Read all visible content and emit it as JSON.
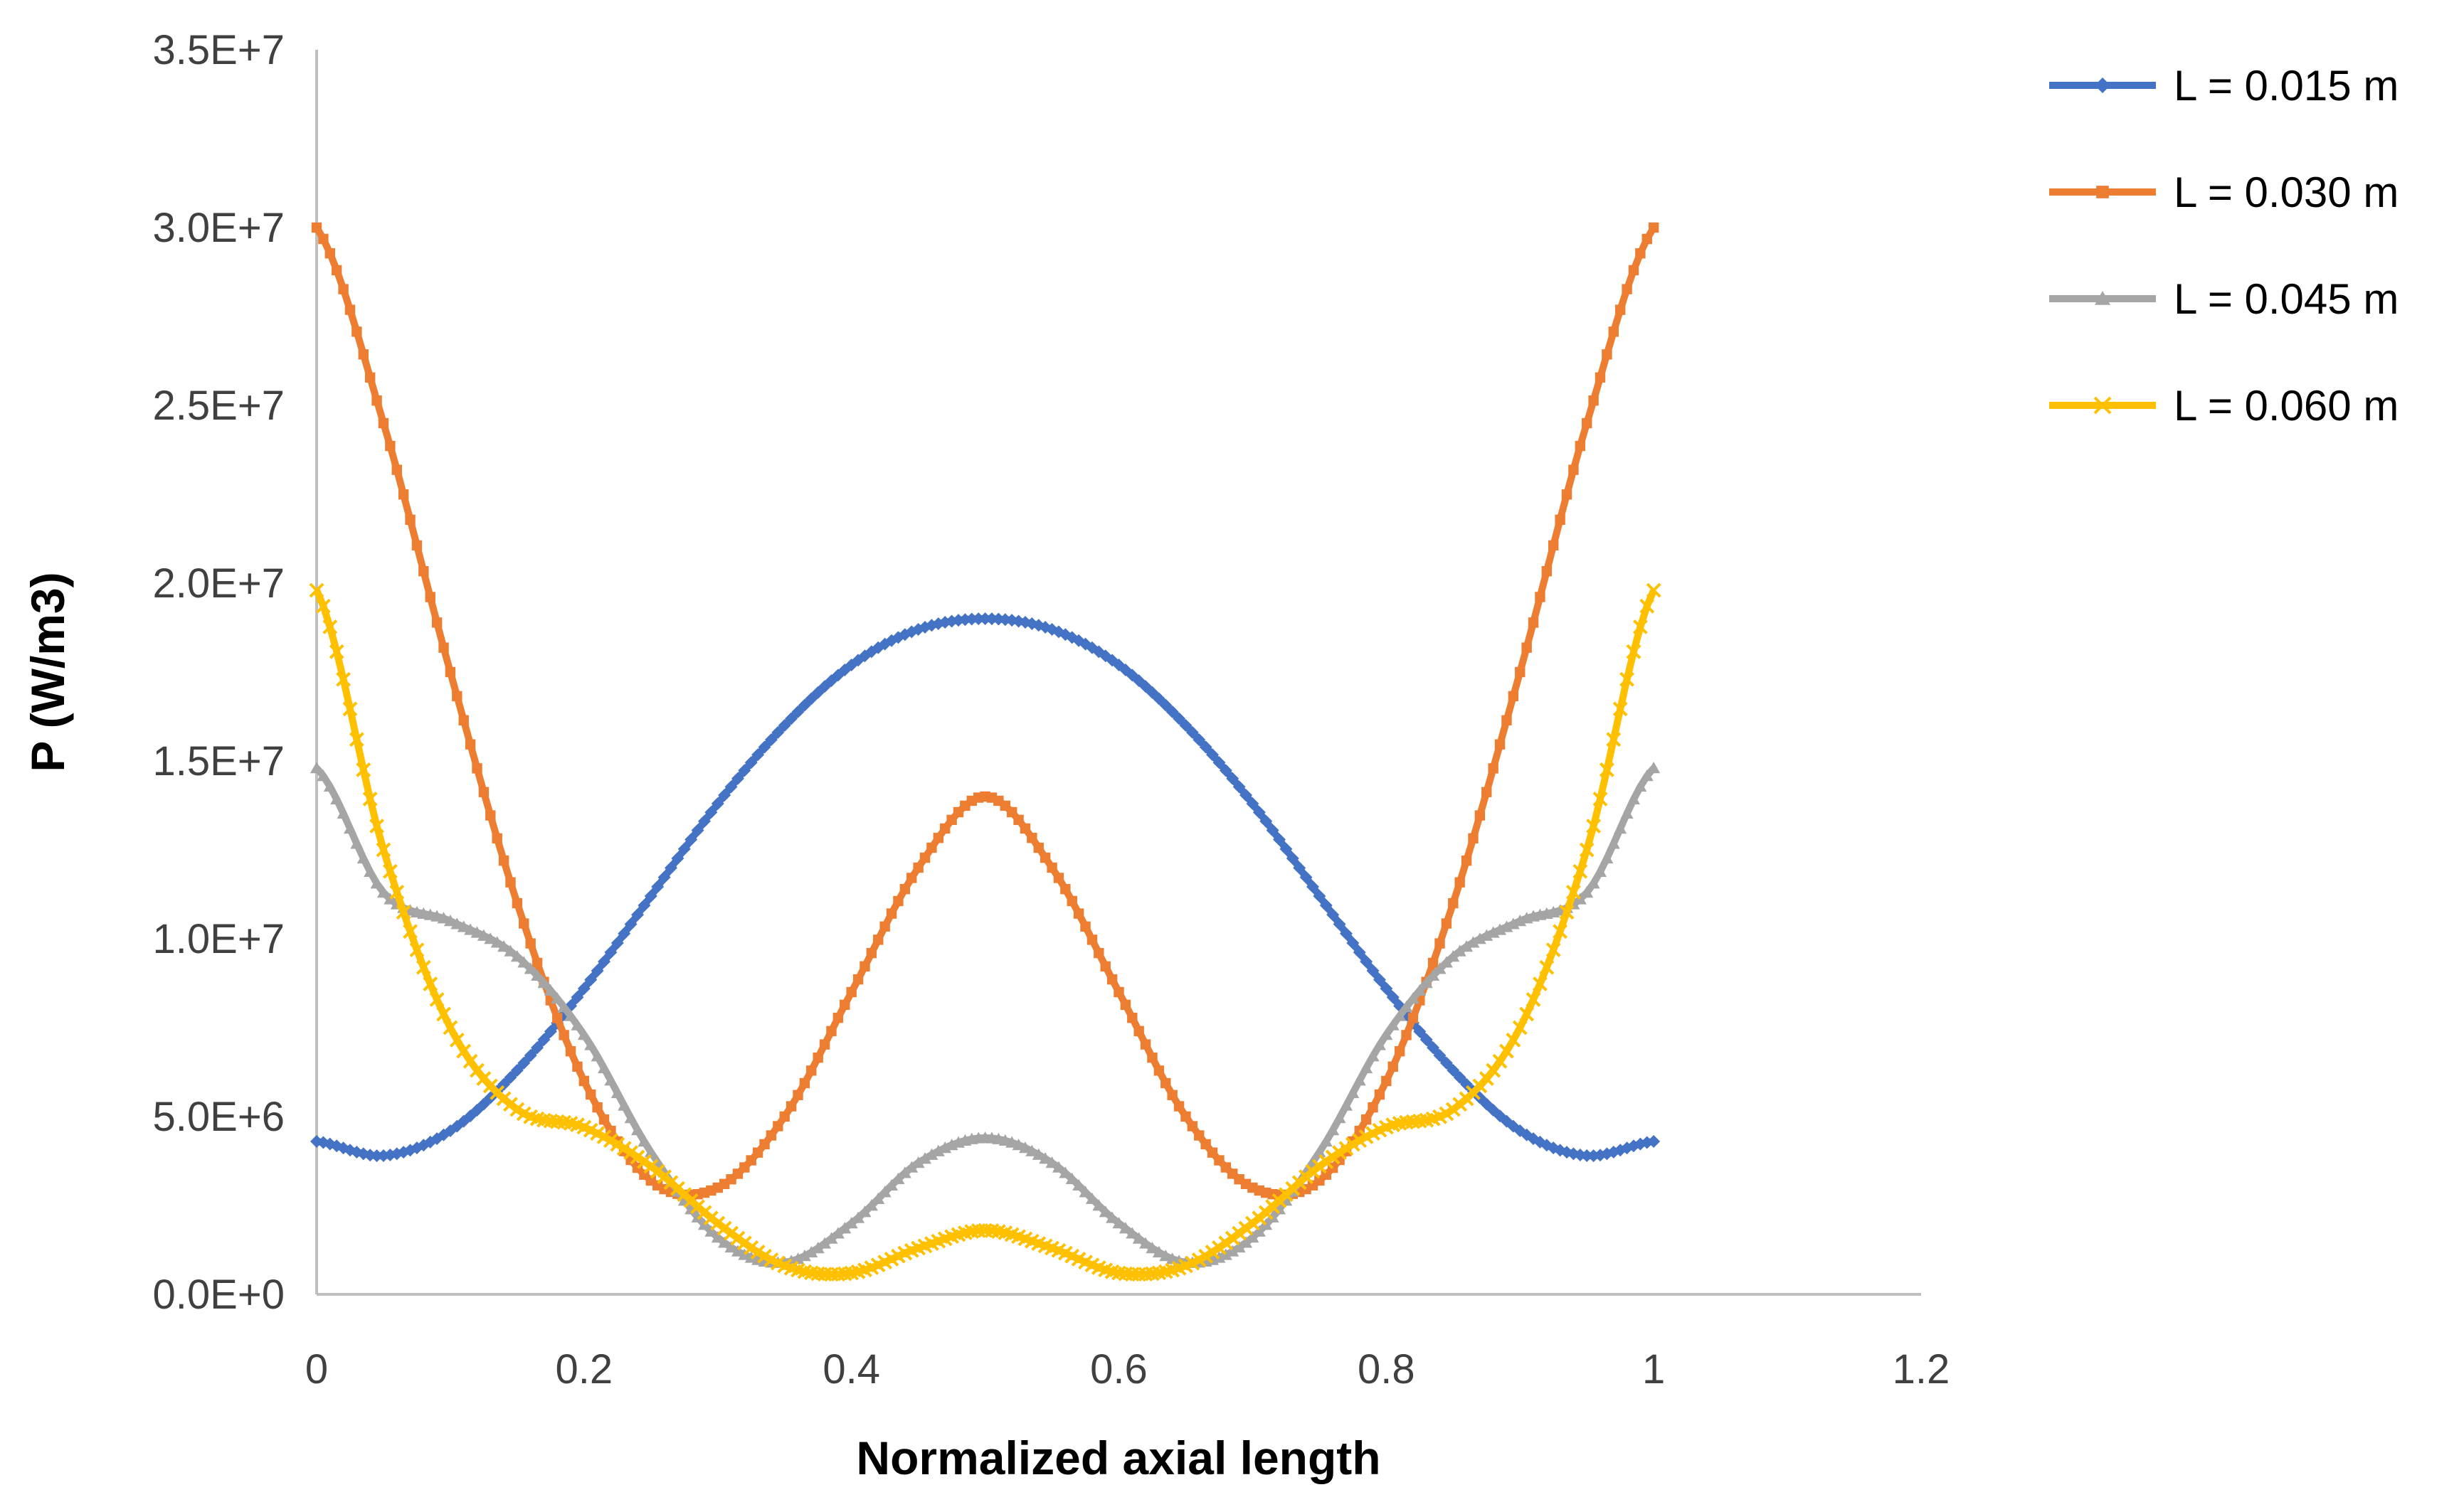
{
  "chart_data": {
    "type": "line",
    "title": "",
    "xlabel": "Normalized axial length",
    "ylabel": "P (W/m3)",
    "xlim": [
      0,
      1.2
    ],
    "ylim": [
      0,
      35000000
    ],
    "x_ticks": [
      "0",
      "0.2",
      "0.4",
      "0.6",
      "0.8",
      "1",
      "1.2"
    ],
    "y_ticks": [
      "0.0E+0",
      "5.0E+6",
      "1.0E+7",
      "1.5E+7",
      "2.0E+7",
      "2.5E+7",
      "3.0E+7",
      "3.5E+7"
    ],
    "grid": false,
    "legend_position": "top-right",
    "x": [
      0,
      0.05,
      0.1,
      0.15,
      0.2,
      0.25,
      0.3,
      0.35,
      0.4,
      0.45,
      0.5,
      0.55,
      0.6,
      0.65,
      0.7,
      0.75,
      0.8,
      0.85,
      0.9,
      0.95,
      1.0
    ],
    "series": [
      {
        "name": "L = 0.015 m",
        "color": "#4472C4",
        "marker": "diamond",
        "values": [
          4300000,
          3900000,
          4600000,
          6300000,
          8600000,
          11200000,
          13800000,
          16000000,
          17700000,
          18700000,
          19000000,
          18700000,
          17700000,
          16000000,
          13800000,
          11200000,
          8600000,
          6300000,
          4600000,
          3900000,
          4300000
        ]
      },
      {
        "name": "L = 0.030 m",
        "color": "#ED7D31",
        "marker": "square",
        "values": [
          30000000,
          24500000,
          17500000,
          11000000,
          6000000,
          3200000,
          3000000,
          5000000,
          8500000,
          12000000,
          14000000,
          12000000,
          8500000,
          5000000,
          3000000,
          3200000,
          6000000,
          11000000,
          17500000,
          24500000,
          30000000
        ]
      },
      {
        "name": "L = 0.045 m",
        "color": "#A5A5A5",
        "marker": "triangle",
        "values": [
          14800000,
          11300000,
          10500000,
          9500000,
          7300000,
          4000000,
          1600000,
          900000,
          2000000,
          3700000,
          4400000,
          3700000,
          2000000,
          900000,
          1600000,
          4000000,
          7300000,
          9500000,
          10500000,
          11300000,
          14800000
        ]
      },
      {
        "name": "L = 0.060 m",
        "color": "#FFC000",
        "marker": "x",
        "values": [
          19800000,
          12500000,
          7500000,
          5200000,
          4700000,
          3600000,
          2000000,
          800000,
          600000,
          1300000,
          1800000,
          1300000,
          600000,
          800000,
          2000000,
          3600000,
          4700000,
          5200000,
          7500000,
          12500000,
          19800000
        ]
      }
    ]
  }
}
